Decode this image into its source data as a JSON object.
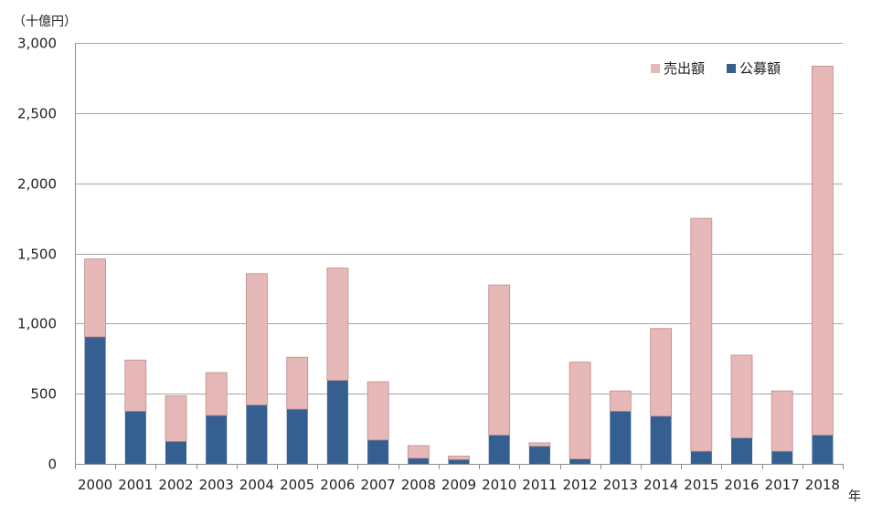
{
  "chart_data": {
    "type": "bar",
    "stacked": true,
    "y_unit_label": "（十億円）",
    "x_unit_label": "年",
    "categories": [
      "2000",
      "2001",
      "2002",
      "2003",
      "2004",
      "2005",
      "2006",
      "2007",
      "2008",
      "2009",
      "2010",
      "2011",
      "2012",
      "2013",
      "2014",
      "2015",
      "2016",
      "2017",
      "2018"
    ],
    "series": [
      {
        "name": "公募額",
        "color": "#355f91",
        "values": [
          905,
          375,
          160,
          345,
          420,
          390,
          595,
          170,
          40,
          30,
          205,
          125,
          35,
          375,
          340,
          90,
          185,
          90,
          205
        ]
      },
      {
        "name": "売出額",
        "color": "#e6b8b7",
        "values": [
          555,
          365,
          325,
          305,
          935,
          370,
          800,
          415,
          90,
          25,
          1070,
          25,
          690,
          145,
          625,
          1660,
          590,
          430,
          2630
        ]
      }
    ],
    "legend_order": [
      "売出額",
      "公募額"
    ],
    "y_ticks": [
      "0",
      "500",
      "1,000",
      "1,500",
      "2,000",
      "2,500",
      "3,000"
    ],
    "ylim": [
      0,
      3000
    ],
    "grid": true,
    "legend_position": "top-right"
  }
}
